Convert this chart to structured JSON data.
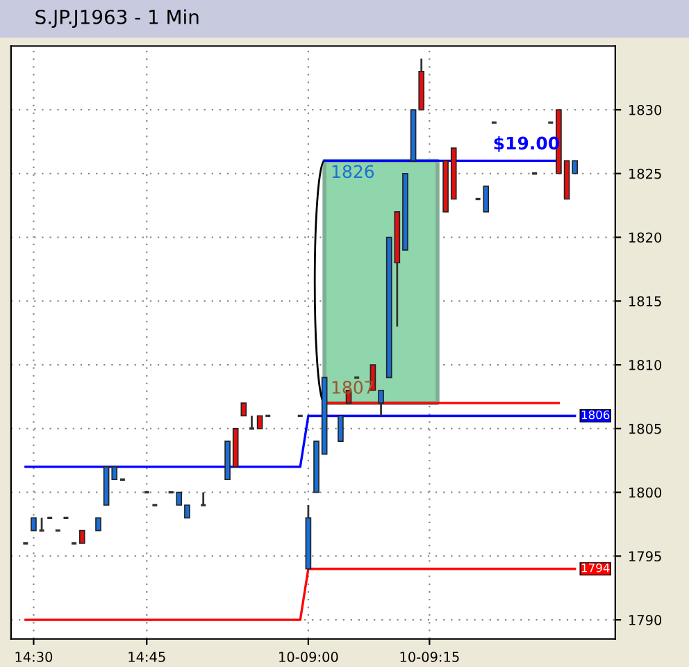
{
  "chart_data": {
    "type": "candlestick",
    "title": "S.JP.J1963 - 1 Min",
    "categories": [
      null,
      "14:30",
      null,
      null,
      null,
      null,
      null,
      null,
      null,
      null,
      null,
      null,
      null,
      null,
      null,
      "14:45",
      null,
      null,
      null,
      null,
      null,
      null,
      null,
      null,
      null,
      null,
      null,
      null,
      null,
      null,
      null,
      null,
      null,
      null,
      null,
      "10-09:00",
      null,
      null,
      null,
      null,
      null,
      null,
      null,
      null,
      null,
      null,
      null,
      null,
      null,
      null,
      "10-09:15",
      null,
      null,
      null,
      null,
      null,
      null,
      null,
      null,
      null,
      null,
      null,
      null,
      null,
      null,
      null,
      null,
      null,
      null
    ],
    "ohlc": [
      [
        1796,
        1796,
        1796,
        1796
      ],
      [
        1797,
        1798,
        1797,
        1798
      ],
      [
        1797,
        1798,
        1797,
        1797
      ],
      [
        1798,
        1798,
        1798,
        1798
      ],
      [
        1797,
        1797,
        1797,
        1797
      ],
      [
        1798,
        1798,
        1798,
        1798
      ],
      [
        1796,
        1796,
        1796,
        1796
      ],
      [
        1797,
        1797,
        1796,
        1796
      ],
      null,
      [
        1797,
        1798,
        1797,
        1798
      ],
      [
        1799,
        1802,
        1799,
        1802
      ],
      [
        1801,
        1802,
        1801,
        1802
      ],
      [
        1801,
        1801,
        1801,
        1801
      ],
      null,
      null,
      [
        1800,
        1800,
        1800,
        1800
      ],
      [
        1799,
        1799,
        1799,
        1799
      ],
      null,
      [
        1800,
        1800,
        1800,
        1800
      ],
      [
        1799,
        1800,
        1799,
        1800
      ],
      [
        1798,
        1799,
        1798,
        1799
      ],
      null,
      [
        1799,
        1800,
        1799,
        1799
      ],
      null,
      null,
      [
        1801,
        1804,
        1801,
        1804
      ],
      [
        1805,
        1805,
        1802,
        1802
      ],
      [
        1807,
        1807,
        1806,
        1806
      ],
      [
        1805,
        1806,
        1805,
        1805
      ],
      [
        1806,
        1806,
        1805,
        1805
      ],
      [
        1806,
        1806,
        1806,
        1806
      ],
      null,
      null,
      null,
      [
        1806,
        1806,
        1806,
        1806
      ],
      [
        1794,
        1799,
        1794,
        1798
      ],
      [
        1800,
        1804,
        1800,
        1804
      ],
      [
        1803,
        1809,
        1803,
        1809
      ],
      null,
      [
        1804,
        1806,
        1804,
        1806
      ],
      [
        1808,
        1808,
        1807,
        1807
      ],
      [
        1809,
        1809,
        1809,
        1809
      ],
      null,
      [
        1810,
        1810,
        1808,
        1808
      ],
      [
        1807,
        1808,
        1806,
        1808
      ],
      [
        1809,
        1820,
        1809,
        1820
      ],
      [
        1822,
        1822,
        1813,
        1818
      ],
      [
        1819,
        1825,
        1819,
        1825
      ],
      [
        1826,
        1830,
        1826,
        1830
      ],
      [
        1833,
        1834,
        1830,
        1830
      ],
      null,
      null,
      [
        1826,
        1826,
        1822,
        1822
      ],
      [
        1827,
        1827,
        1823,
        1823
      ],
      null,
      null,
      [
        1823,
        1823,
        1823,
        1823
      ],
      [
        1822,
        1824,
        1822,
        1824
      ],
      [
        1829,
        1829,
        1829,
        1829
      ],
      null,
      null,
      null,
      null,
      [
        1825,
        1825,
        1825,
        1825
      ],
      null,
      [
        1829,
        1829,
        1829,
        1829
      ],
      [
        1830,
        1830,
        1825,
        1825
      ],
      [
        1826,
        1826,
        1823,
        1823
      ],
      [
        1825,
        1826,
        1825,
        1826
      ]
    ],
    "colors": [
      "#333333",
      "#1a6fd6",
      "#333333",
      "#333333",
      "#333333",
      "#333333",
      "#333333",
      "#e31010",
      null,
      "#1a6fd6",
      "#1a6fd6",
      "#1a6fd6",
      "#333333",
      null,
      null,
      "#333333",
      "#333333",
      null,
      "#333333",
      "#1a6fd6",
      "#1a6fd6",
      null,
      "#333333",
      null,
      null,
      "#1a6fd6",
      "#e31010",
      "#e31010",
      "#333333",
      "#e31010",
      "#333333",
      null,
      null,
      null,
      "#333333",
      "#1a6fd6",
      "#1a6fd6",
      "#1a6fd6",
      null,
      "#1a6fd6",
      "#e31010",
      "#333333",
      null,
      "#e31010",
      "#1a6fd6",
      "#1a6fd6",
      "#e31010",
      "#1a6fd6",
      "#1a6fd6",
      "#e31010",
      null,
      null,
      "#e31010",
      "#e31010",
      null,
      null,
      "#333333",
      "#1a6fd6",
      "#333333",
      null,
      null,
      null,
      null,
      "#333333",
      null,
      "#333333",
      "#e31010",
      "#e31010",
      "#1a6fd6"
    ],
    "series": [
      {
        "type": "area",
        "color": "#8fd6ac",
        "values": [
          null,
          null,
          null,
          null,
          null,
          null,
          null,
          null,
          null,
          null,
          null,
          null,
          null,
          null,
          null,
          null,
          null,
          null,
          null,
          null,
          null,
          null,
          null,
          null,
          null,
          null,
          null,
          null,
          null,
          null,
          null,
          null,
          null,
          null,
          null,
          null,
          null,
          1826,
          1826,
          1826,
          1826,
          1826,
          1826,
          1826,
          1826,
          1826,
          1826,
          1826,
          1826,
          1826,
          1826,
          1826,
          null,
          null,
          null,
          null,
          null,
          null,
          null,
          null,
          null,
          null,
          null,
          null,
          null,
          null,
          null,
          null,
          null
        ]
      },
      {
        "type": "line",
        "color": "#0000ff",
        "values": [
          1802,
          1802,
          1802,
          1802,
          1802,
          1802,
          1802,
          1802,
          1802,
          1802,
          1802,
          1802,
          1802,
          1802,
          1802,
          1802,
          1802,
          1802,
          1802,
          1802,
          1802,
          1802,
          1802,
          1802,
          1802,
          1802,
          1802,
          1802,
          1802,
          1802,
          1802,
          1802,
          1802,
          1802,
          1802,
          1806,
          1806,
          1806,
          1806,
          1806,
          1806,
          1806,
          1806,
          1806,
          1806,
          1806,
          1806,
          1806,
          1806,
          1806,
          1806,
          1806,
          1806,
          1806,
          1806,
          1806,
          1806,
          1806,
          1806,
          1806,
          1806,
          1806,
          1806,
          1806,
          1806,
          1806,
          1806,
          1806,
          1806
        ],
        "value_labels": [
          null,
          null,
          null,
          null,
          null,
          null,
          null,
          null,
          null,
          null,
          null,
          null,
          null,
          null,
          null,
          null,
          null,
          null,
          null,
          null,
          null,
          null,
          null,
          null,
          null,
          null,
          null,
          null,
          null,
          null,
          null,
          null,
          null,
          null,
          null,
          null,
          null,
          null,
          null,
          null,
          null,
          null,
          null,
          null,
          null,
          null,
          null,
          null,
          null,
          null,
          null,
          null,
          null,
          null,
          null,
          null,
          null,
          null,
          null,
          null,
          null,
          null,
          null,
          null,
          null,
          null,
          null,
          null,
          "1806"
        ]
      },
      {
        "type": "line",
        "color": "#ff0000",
        "values": [
          1790,
          1790,
          1790,
          1790,
          1790,
          1790,
          1790,
          1790,
          1790,
          1790,
          1790,
          1790,
          1790,
          1790,
          1790,
          1790,
          1790,
          1790,
          1790,
          1790,
          1790,
          1790,
          1790,
          1790,
          1790,
          1790,
          1790,
          1790,
          1790,
          1790,
          1790,
          1790,
          1790,
          1790,
          1790,
          1794,
          1794,
          1794,
          1794,
          1794,
          1794,
          1794,
          1794,
          1794,
          1794,
          1794,
          1794,
          1794,
          1794,
          1794,
          1794,
          1794,
          1794,
          1794,
          1794,
          1794,
          1794,
          1794,
          1794,
          1794,
          1794,
          1794,
          1794,
          1794,
          1794,
          1794,
          1794,
          1794,
          1794
        ],
        "value_labels": [
          null,
          null,
          null,
          null,
          null,
          null,
          null,
          null,
          null,
          null,
          null,
          null,
          null,
          null,
          null,
          null,
          null,
          null,
          null,
          null,
          null,
          null,
          null,
          null,
          null,
          null,
          null,
          null,
          null,
          null,
          null,
          null,
          null,
          null,
          null,
          null,
          null,
          null,
          null,
          null,
          null,
          null,
          null,
          null,
          null,
          null,
          null,
          null,
          null,
          null,
          null,
          null,
          null,
          null,
          null,
          null,
          null,
          null,
          null,
          null,
          null,
          null,
          null,
          null,
          null,
          null,
          null,
          null,
          "1794"
        ]
      },
      {
        "type": "line",
        "color": "#ff0000",
        "values": [
          null,
          null,
          null,
          null,
          null,
          null,
          null,
          null,
          null,
          null,
          null,
          null,
          null,
          null,
          null,
          null,
          null,
          null,
          null,
          null,
          null,
          null,
          null,
          null,
          null,
          null,
          null,
          null,
          null,
          null,
          null,
          null,
          null,
          null,
          null,
          null,
          null,
          1807,
          1807,
          1807,
          1807,
          1807,
          1807,
          1807,
          1807,
          1807,
          1807,
          1807,
          1807,
          1807,
          1807,
          1807,
          1807,
          1807,
          1807,
          1807,
          1807,
          1807,
          1807,
          1807,
          1807,
          1807,
          1807,
          1807,
          1807,
          1807,
          1807,
          null,
          null
        ],
        "value_labels": [
          null,
          null,
          null,
          null,
          null,
          null,
          null,
          null,
          null,
          null,
          null,
          null,
          null,
          null,
          null,
          null,
          null,
          null,
          null,
          null,
          null,
          null,
          null,
          null,
          null,
          null,
          null,
          null,
          null,
          null,
          null,
          null,
          null,
          null,
          null,
          null,
          null,
          null,
          null,
          null,
          null,
          null,
          null,
          "1807",
          null,
          null,
          null,
          null,
          null,
          null,
          null,
          null,
          null,
          null,
          null,
          null,
          null,
          null,
          null,
          null,
          null,
          null,
          null,
          null,
          null,
          null,
          null,
          null,
          null
        ]
      },
      {
        "type": "line",
        "color": "#0000ff",
        "values": [
          null,
          null,
          null,
          null,
          null,
          null,
          null,
          null,
          null,
          null,
          null,
          null,
          null,
          null,
          null,
          null,
          null,
          null,
          null,
          null,
          null,
          null,
          null,
          null,
          null,
          null,
          null,
          null,
          null,
          null,
          null,
          null,
          null,
          null,
          null,
          null,
          null,
          1826,
          1826,
          1826,
          1826,
          1826,
          1826,
          1826,
          1826,
          1826,
          1826,
          1826,
          1826,
          1826,
          1826,
          1826,
          1826,
          1826,
          1826,
          1826,
          1826,
          1826,
          1826,
          1826,
          1826,
          1826,
          1826,
          1826,
          1826,
          1826,
          1826,
          null,
          null
        ],
        "value_labels": [
          null,
          null,
          null,
          null,
          null,
          null,
          null,
          null,
          null,
          null,
          null,
          null,
          null,
          null,
          null,
          null,
          null,
          null,
          null,
          null,
          null,
          null,
          null,
          null,
          null,
          null,
          null,
          null,
          null,
          null,
          null,
          null,
          null,
          null,
          null,
          null,
          null,
          null,
          null,
          null,
          null,
          null,
          null,
          "1826",
          null,
          null,
          null,
          null,
          null,
          null,
          null,
          null,
          null,
          null,
          null,
          null,
          null,
          null,
          null,
          null,
          null,
          null,
          null,
          null,
          null,
          null,
          null,
          null,
          null
        ]
      }
    ],
    "annotations": [
      "$19.00"
    ],
    "ylim": [
      1788.5,
      1835
    ],
    "yticks": [
      1790,
      1795,
      1800,
      1805,
      1810,
      1815,
      1820,
      1825,
      1830
    ],
    "grid": true
  }
}
